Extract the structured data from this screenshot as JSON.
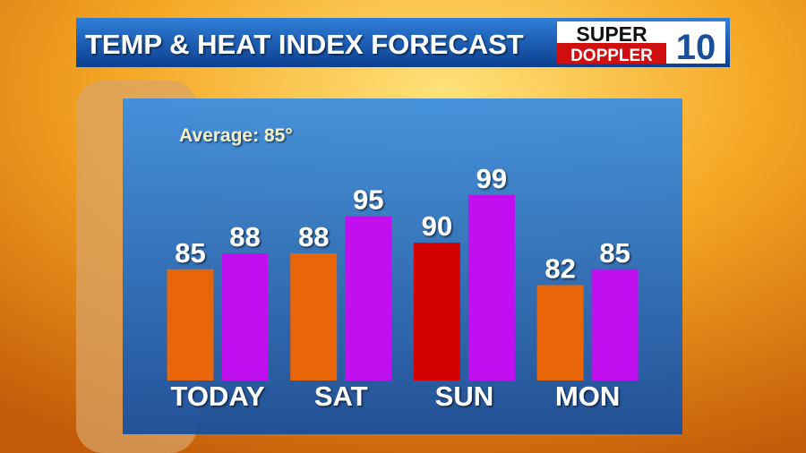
{
  "chart_data": {
    "type": "bar",
    "title": "TEMP & HEAT INDEX FORECAST",
    "annotation": "Average: 85°",
    "logo": {
      "top": "SUPER",
      "bottom": "DOPPLER",
      "number": "10"
    },
    "categories": [
      "TODAY",
      "SAT",
      "SUN",
      "MON"
    ],
    "series": [
      {
        "colors": [
          "#e8650a",
          "#e8650a",
          "#d40000",
          "#e8650a"
        ],
        "values": [
          85,
          88,
          90,
          82
        ]
      },
      {
        "color": "#c010f0",
        "values": [
          88,
          95,
          99,
          85
        ]
      }
    ],
    "ylim": [
      64,
      100
    ]
  }
}
